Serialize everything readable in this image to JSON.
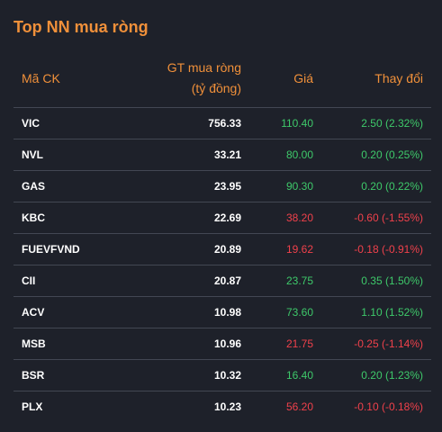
{
  "title": "Top NN mua ròng",
  "columns": {
    "symbol": "Mã CK",
    "value_line1": "GT mua ròng",
    "value_line2": "(tỷ đồng)",
    "price": "Giá",
    "change": "Thay đổi"
  },
  "colors": {
    "accent": "#f0903a",
    "up": "#3ec96a",
    "down": "#f0414b",
    "background": "#1e212a"
  },
  "rows": [
    {
      "symbol": "VIC",
      "value": "756.33",
      "price": "110.40",
      "change": "2.50 (2.32%)",
      "direction": "up"
    },
    {
      "symbol": "NVL",
      "value": "33.21",
      "price": "80.00",
      "change": "0.20 (0.25%)",
      "direction": "up"
    },
    {
      "symbol": "GAS",
      "value": "23.95",
      "price": "90.30",
      "change": "0.20 (0.22%)",
      "direction": "up"
    },
    {
      "symbol": "KBC",
      "value": "22.69",
      "price": "38.20",
      "change": "-0.60 (-1.55%)",
      "direction": "down"
    },
    {
      "symbol": "FUEVFVND",
      "value": "20.89",
      "price": "19.62",
      "change": "-0.18 (-0.91%)",
      "direction": "down"
    },
    {
      "symbol": "CII",
      "value": "20.87",
      "price": "23.75",
      "change": "0.35 (1.50%)",
      "direction": "up"
    },
    {
      "symbol": "ACV",
      "value": "10.98",
      "price": "73.60",
      "change": "1.10 (1.52%)",
      "direction": "up"
    },
    {
      "symbol": "MSB",
      "value": "10.96",
      "price": "21.75",
      "change": "-0.25 (-1.14%)",
      "direction": "down"
    },
    {
      "symbol": "BSR",
      "value": "10.32",
      "price": "16.40",
      "change": "0.20 (1.23%)",
      "direction": "up"
    },
    {
      "symbol": "PLX",
      "value": "10.23",
      "price": "56.20",
      "change": "-0.10 (-0.18%)",
      "direction": "down"
    }
  ]
}
